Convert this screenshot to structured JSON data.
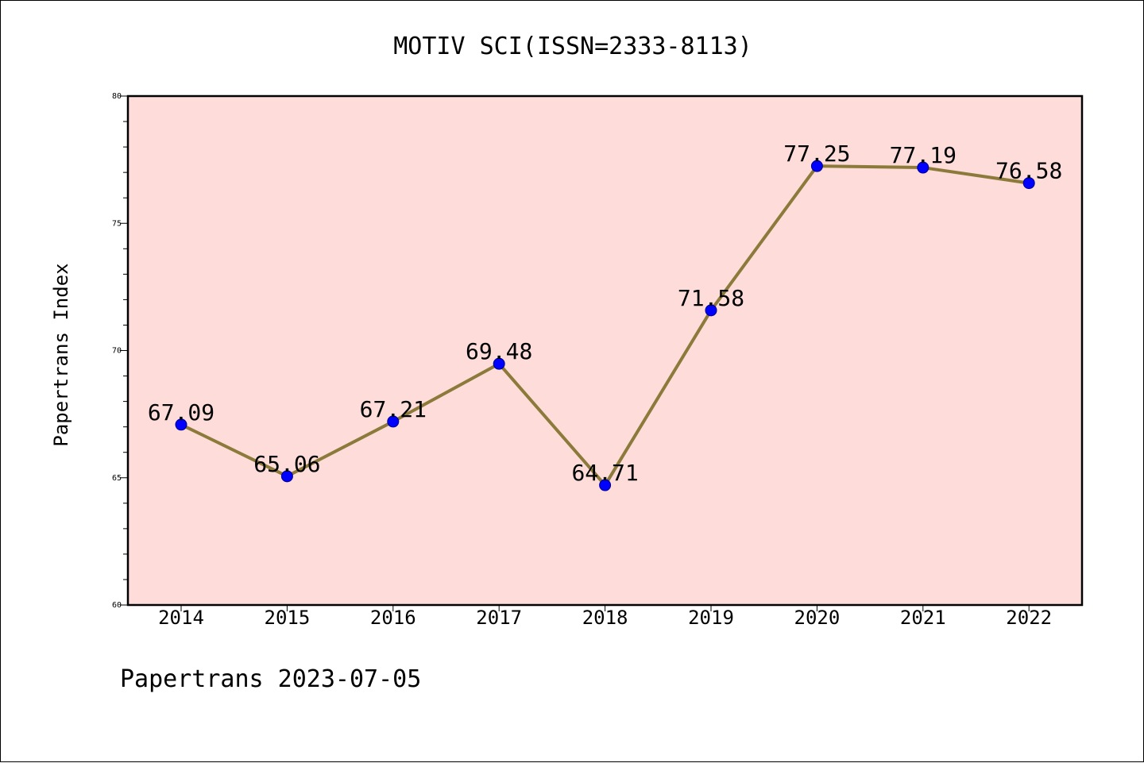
{
  "chart_data": {
    "type": "line",
    "title": "MOTIV SCI(ISSN=2333-8113)",
    "ylabel": "Papertrans Index",
    "xlabel": "",
    "categories": [
      "2014",
      "2015",
      "2016",
      "2017",
      "2018",
      "2019",
      "2020",
      "2021",
      "2022"
    ],
    "values": [
      67.09,
      65.06,
      67.21,
      69.48,
      64.71,
      71.58,
      77.25,
      77.19,
      76.58
    ],
    "data_labels": [
      "67.09",
      "65.06",
      "67.21",
      "69.48",
      "64.71",
      "71.58",
      "77.25",
      "77.19",
      "76.58"
    ],
    "ylim": [
      60,
      80
    ],
    "y_ticks": [
      "60",
      "65",
      "70",
      "75",
      "80"
    ],
    "grid": false,
    "legend": "none",
    "plot_background": "#fddcd9",
    "line_color": "#8b7a3a",
    "marker_color": "#0000ff"
  },
  "footer": "Papertrans 2023-07-05"
}
